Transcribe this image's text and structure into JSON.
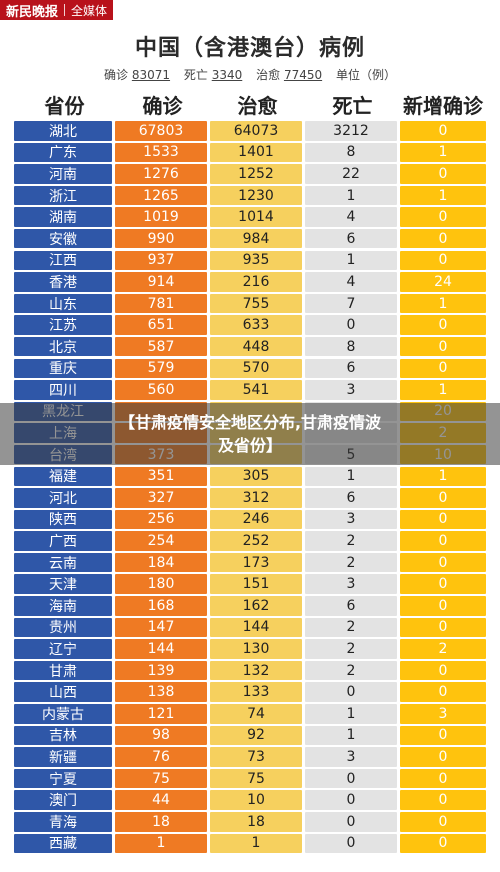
{
  "brand": {
    "name": "新民晚报",
    "tag": "全媒体"
  },
  "title": "中国（含港澳台）病例",
  "totals": {
    "confirmed_label": "确诊",
    "confirmed": "83071",
    "dead_label": "死亡",
    "dead": "3340",
    "cured_label": "治愈",
    "cured": "77450",
    "unit": "单位（例）"
  },
  "headers": [
    "省份",
    "确诊",
    "治愈",
    "死亡",
    "新增确诊"
  ],
  "overlay": {
    "line1": "【甘肃疫情安全地区分布,甘肃疫情波",
    "line2": "及省份】"
  },
  "colors": {
    "province": "#2f57a8",
    "confirmed": "#ef7a23",
    "cured": "#f6d05e",
    "dead": "#e3e3e3",
    "new": "#ffc30d"
  },
  "rows": [
    [
      "湖北",
      "67803",
      "64073",
      "3212",
      "0"
    ],
    [
      "广东",
      "1533",
      "1401",
      "8",
      "1"
    ],
    [
      "河南",
      "1276",
      "1252",
      "22",
      "0"
    ],
    [
      "浙江",
      "1265",
      "1230",
      "1",
      "1"
    ],
    [
      "湖南",
      "1019",
      "1014",
      "4",
      "0"
    ],
    [
      "安徽",
      "990",
      "984",
      "6",
      "0"
    ],
    [
      "江西",
      "937",
      "935",
      "1",
      "0"
    ],
    [
      "香港",
      "914",
      "216",
      "4",
      "24"
    ],
    [
      "山东",
      "781",
      "755",
      "7",
      "1"
    ],
    [
      "江苏",
      "651",
      "633",
      "0",
      "0"
    ],
    [
      "北京",
      "587",
      "448",
      "8",
      "0"
    ],
    [
      "重庆",
      "579",
      "570",
      "6",
      "0"
    ],
    [
      "四川",
      "560",
      "541",
      "3",
      "1"
    ],
    [
      "黑龙江",
      "",
      "",
      "",
      "20"
    ],
    [
      "上海",
      "",
      "",
      "",
      "2"
    ],
    [
      "台湾",
      "373",
      "",
      "5",
      "10"
    ],
    [
      "福建",
      "351",
      "305",
      "1",
      "1"
    ],
    [
      "河北",
      "327",
      "312",
      "6",
      "0"
    ],
    [
      "陕西",
      "256",
      "246",
      "3",
      "0"
    ],
    [
      "广西",
      "254",
      "252",
      "2",
      "0"
    ],
    [
      "云南",
      "184",
      "173",
      "2",
      "0"
    ],
    [
      "天津",
      "180",
      "151",
      "3",
      "0"
    ],
    [
      "海南",
      "168",
      "162",
      "6",
      "0"
    ],
    [
      "贵州",
      "147",
      "144",
      "2",
      "0"
    ],
    [
      "辽宁",
      "144",
      "130",
      "2",
      "2"
    ],
    [
      "甘肃",
      "139",
      "132",
      "2",
      "0"
    ],
    [
      "山西",
      "138",
      "133",
      "0",
      "0"
    ],
    [
      "内蒙古",
      "121",
      "74",
      "1",
      "3"
    ],
    [
      "吉林",
      "98",
      "92",
      "1",
      "0"
    ],
    [
      "新疆",
      "76",
      "73",
      "3",
      "0"
    ],
    [
      "宁夏",
      "75",
      "75",
      "0",
      "0"
    ],
    [
      "澳门",
      "44",
      "10",
      "0",
      "0"
    ],
    [
      "青海",
      "18",
      "18",
      "0",
      "0"
    ],
    [
      "西藏",
      "1",
      "1",
      "0",
      "0"
    ]
  ]
}
